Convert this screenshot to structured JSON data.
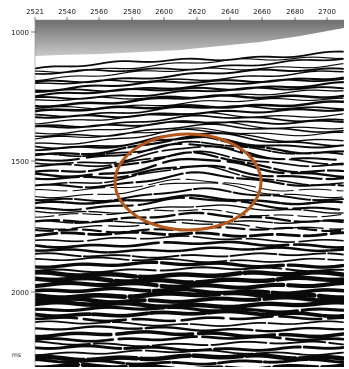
{
  "x_axis": {
    "tick_labels": [
      "2521",
      "2540",
      "2560",
      "2580",
      "2600",
      "2620",
      "2640",
      "2660",
      "2680",
      "2700"
    ]
  },
  "y_axis": {
    "tick_labels": [
      "1000",
      "1500",
      "2000"
    ],
    "unit_label": "ms"
  },
  "annotation": {
    "shape": "ellipse",
    "color": "#b5561a"
  },
  "colors": {
    "wiggle_dark": "#0a0a0a",
    "background": "#ffffff",
    "top_band": "#9a9a9a"
  }
}
